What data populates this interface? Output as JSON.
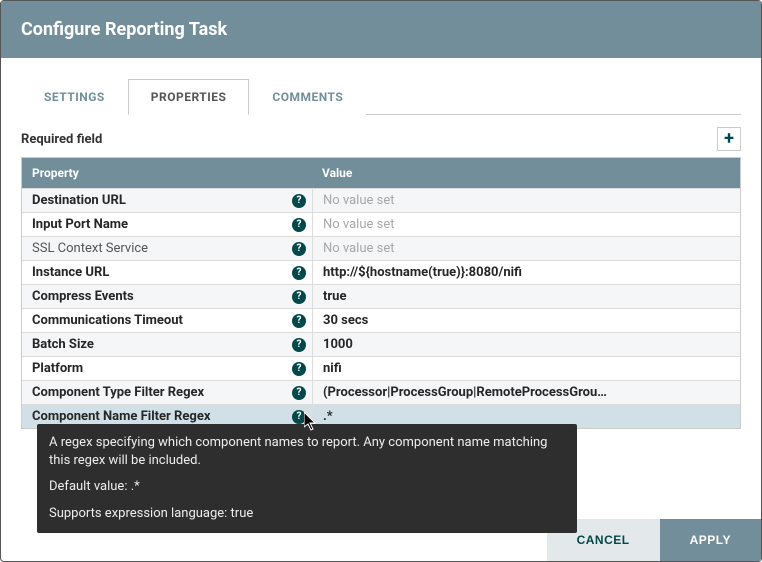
{
  "title": "Configure Reporting Task",
  "tabs": {
    "settings": "SETTINGS",
    "properties": "PROPERTIES",
    "comments": "COMMENTS"
  },
  "required_label": "Required field",
  "table": {
    "header_property": "Property",
    "header_value": "Value"
  },
  "rows": [
    {
      "name": "Destination URL",
      "bold": true,
      "value": "No value set",
      "hasValue": false
    },
    {
      "name": "Input Port Name",
      "bold": true,
      "value": "No value set",
      "hasValue": false
    },
    {
      "name": "SSL Context Service",
      "bold": false,
      "value": "No value set",
      "hasValue": false
    },
    {
      "name": "Instance URL",
      "bold": true,
      "value": "http://${hostname(true)}:8080/nifi",
      "hasValue": true
    },
    {
      "name": "Compress Events",
      "bold": true,
      "value": "true",
      "hasValue": true
    },
    {
      "name": "Communications Timeout",
      "bold": true,
      "value": "30 secs",
      "hasValue": true
    },
    {
      "name": "Batch Size",
      "bold": true,
      "value": "1000",
      "hasValue": true
    },
    {
      "name": "Platform",
      "bold": true,
      "value": "nifi",
      "hasValue": true
    },
    {
      "name": "Component Type Filter Regex",
      "bold": true,
      "value": "(Processor|ProcessGroup|RemoteProcessGrou…",
      "hasValue": true
    },
    {
      "name": "Component Name Filter Regex",
      "bold": true,
      "value": ".*",
      "hasValue": true,
      "selected": true
    }
  ],
  "tooltip": {
    "desc": "A regex specifying which component names to report. Any component name matching this regex will be included.",
    "default": "Default value: .*",
    "expr": "Supports expression language: true"
  },
  "buttons": {
    "cancel": "CANCEL",
    "apply": "APPLY"
  },
  "colors": {
    "header_bg": "#728e9b",
    "accent": "#004849",
    "tooltip_bg": "#2e2e2e"
  }
}
